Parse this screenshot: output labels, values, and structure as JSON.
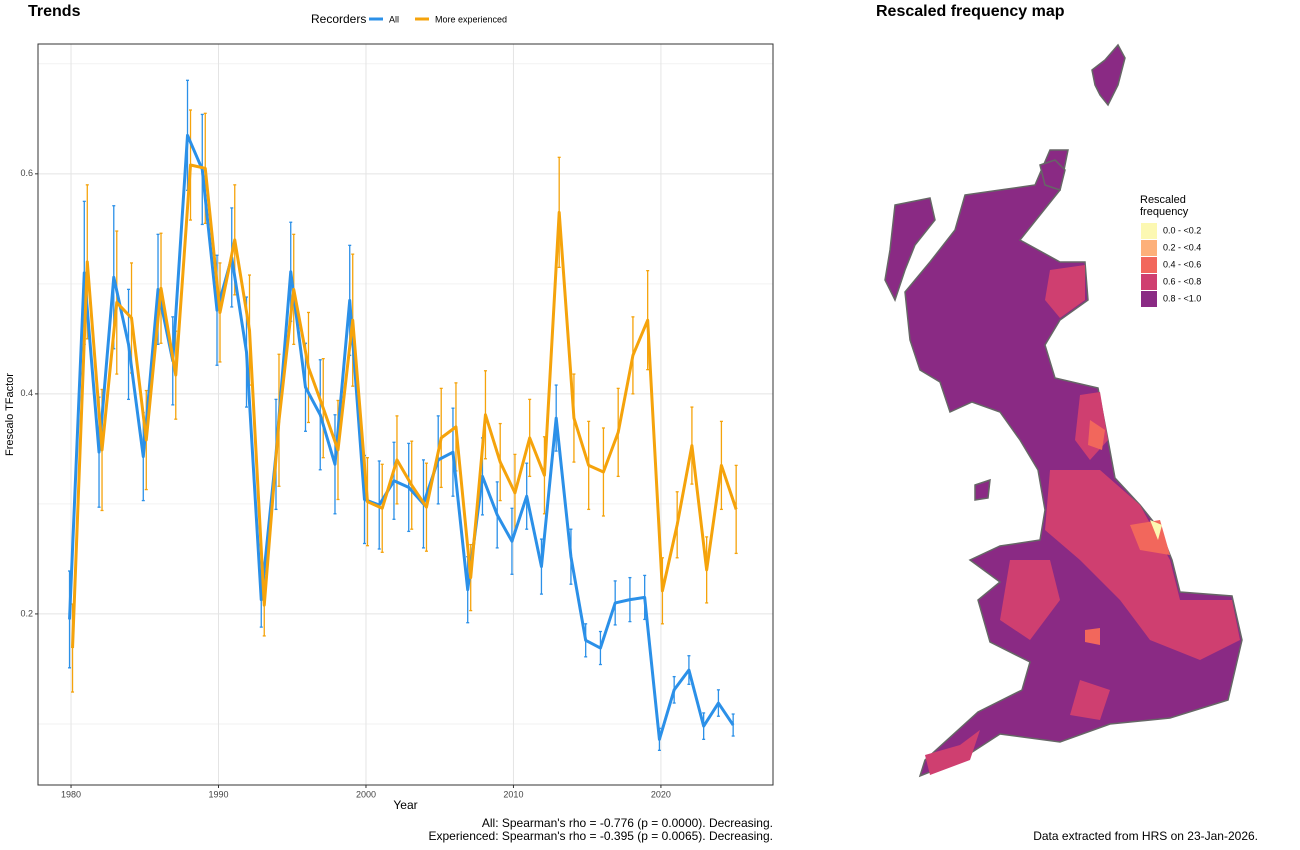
{
  "chart_data": [
    {
      "type": "line",
      "title": "Trends",
      "legend_title": "Recorders",
      "xlabel": "Year",
      "ylabel": "Frescalo TFactor",
      "x": [
        1980,
        1981,
        1982,
        1983,
        1984,
        1985,
        1986,
        1987,
        1988,
        1989,
        1990,
        1991,
        1992,
        1993,
        1994,
        1995,
        1996,
        1997,
        1998,
        1999,
        2000,
        2001,
        2002,
        2003,
        2004,
        2005,
        2006,
        2007,
        2008,
        2009,
        2010,
        2011,
        2012,
        2013,
        2014,
        2015,
        2016,
        2017,
        2018,
        2019,
        2020,
        2021,
        2022,
        2023,
        2024,
        2025
      ],
      "series": [
        {
          "name": "All",
          "color": "#2b90e8",
          "values": [
            0.195,
            0.51,
            0.347,
            0.506,
            0.445,
            0.343,
            0.495,
            0.43,
            0.635,
            0.604,
            0.476,
            0.524,
            0.438,
            0.213,
            0.345,
            0.511,
            0.406,
            0.381,
            0.336,
            0.485,
            0.304,
            0.299,
            0.321,
            0.315,
            0.3,
            0.34,
            0.347,
            0.222,
            0.325,
            0.29,
            0.266,
            0.307,
            0.243,
            0.378,
            0.252,
            0.176,
            0.169,
            0.21,
            0.213,
            0.215,
            0.086,
            0.131,
            0.149,
            0.098,
            0.119,
            0.099
          ],
          "errors": [
            0.044,
            0.065,
            0.05,
            0.065,
            0.05,
            0.04,
            0.05,
            0.04,
            0.05,
            0.05,
            0.05,
            0.045,
            0.05,
            0.025,
            0.05,
            0.045,
            0.04,
            0.05,
            0.045,
            0.05,
            0.04,
            0.04,
            0.035,
            0.04,
            0.04,
            0.04,
            0.04,
            0.03,
            0.035,
            0.03,
            0.03,
            0.03,
            0.025,
            0.03,
            0.025,
            0.015,
            0.015,
            0.02,
            0.02,
            0.02,
            0.01,
            0.012,
            0.013,
            0.012,
            0.012,
            0.01
          ]
        },
        {
          "name": "More experienced",
          "color": "#f5a30b",
          "values": [
            0.169,
            0.52,
            0.349,
            0.483,
            0.469,
            0.358,
            0.496,
            0.417,
            0.608,
            0.605,
            0.474,
            0.54,
            0.458,
            0.208,
            0.376,
            0.495,
            0.424,
            0.387,
            0.349,
            0.467,
            0.302,
            0.296,
            0.34,
            0.317,
            0.297,
            0.36,
            0.37,
            0.233,
            0.381,
            0.338,
            0.31,
            0.36,
            0.326,
            0.565,
            0.378,
            0.335,
            0.329,
            0.365,
            0.435,
            0.467,
            0.221,
            0.281,
            0.353,
            0.24,
            0.335,
            0.295
          ],
          "errors": [
            0.04,
            0.07,
            0.055,
            0.065,
            0.05,
            0.045,
            0.05,
            0.04,
            0.05,
            0.05,
            0.045,
            0.05,
            0.05,
            0.028,
            0.06,
            0.05,
            0.05,
            0.045,
            0.045,
            0.06,
            0.04,
            0.04,
            0.04,
            0.04,
            0.04,
            0.045,
            0.04,
            0.03,
            0.04,
            0.035,
            0.035,
            0.035,
            0.035,
            0.05,
            0.04,
            0.04,
            0.04,
            0.04,
            0.035,
            0.045,
            0.03,
            0.03,
            0.035,
            0.03,
            0.04,
            0.04
          ]
        }
      ],
      "xlim": [
        1977.76,
        2027.6
      ],
      "xticks": [
        1980,
        1990,
        2000,
        2010,
        2020
      ],
      "ylim": [
        0.0445,
        0.718
      ],
      "yticks": [
        0.2,
        0.4,
        0.6
      ],
      "minor_yticks": [
        0.1,
        0.3,
        0.5,
        0.7
      ],
      "grid": true,
      "notes": [
        "All: Spearman's rho = -0.776 (p = 0.0000). Decreasing.",
        "Experienced: Spearman's rho = -0.395 (p = 0.0065). Decreasing."
      ]
    },
    {
      "type": "map",
      "title": "Rescaled frequency map",
      "legend_title": [
        "Rescaled",
        "frequency"
      ],
      "legend": [
        {
          "label": "0.0 - <0.2",
          "color": "#fcf8b2"
        },
        {
          "label": "0.2 - <0.4",
          "color": "#fdb07a"
        },
        {
          "label": "0.4 - <0.6",
          "color": "#f2675c"
        },
        {
          "label": "0.6 - <0.8",
          "color": "#cf3f70"
        },
        {
          "label": "0.8 - <1.0",
          "color": "#8a2a84"
        }
      ],
      "caption": "Data extracted from HRS on 23-Jan-2026."
    }
  ]
}
